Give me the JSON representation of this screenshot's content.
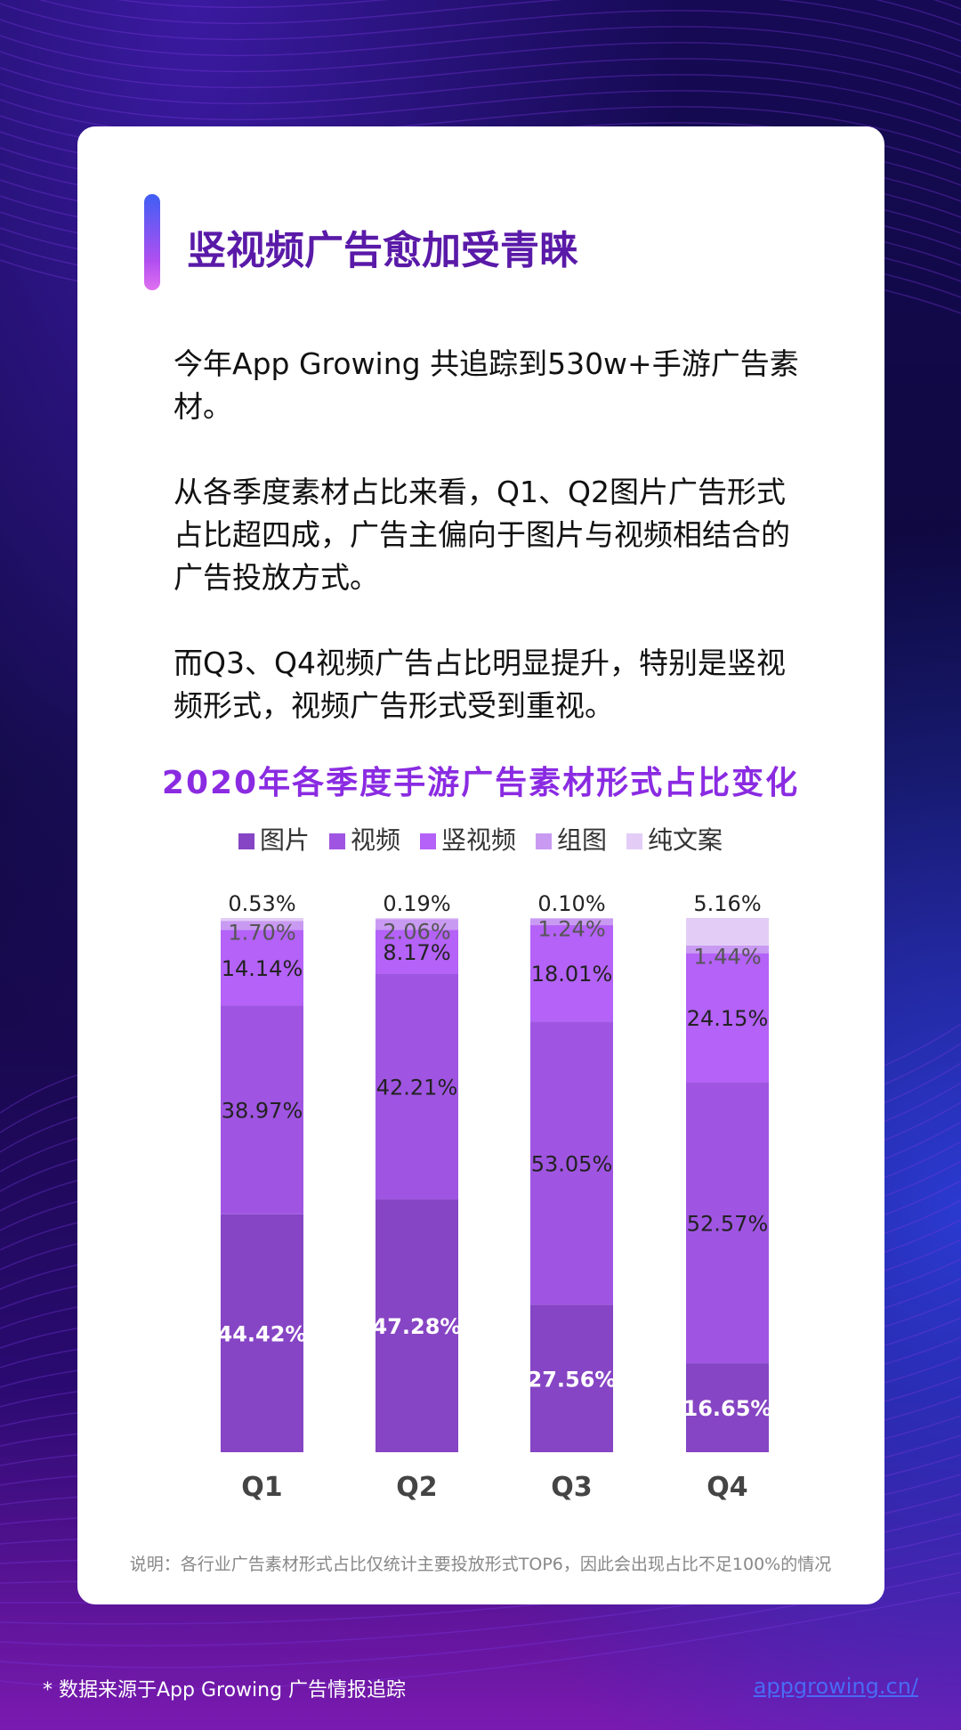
{
  "title": "竖视频广告愈加受青睐",
  "paragraphs": [
    "今年App Growing 共追踪到530w+手游广告素材。",
    "从各季度素材占比来看，Q1、Q2图片广告形式占比超四成，广告主偏向于图片与视频相结合的广告投放方式。",
    "而Q3、Q4视频广告占比明显提升，特别是竖视频形式，视频广告形式受到重视。"
  ],
  "chart_data": {
    "type": "bar",
    "stacked": true,
    "title": "2020年各季度手游广告素材形式占比变化",
    "categories": [
      "Q1",
      "Q2",
      "Q3",
      "Q4"
    ],
    "legend_position": "top",
    "series": [
      {
        "name": "图片",
        "values": [
          44.42,
          47.28,
          27.56,
          16.65
        ],
        "color": "#8645c4",
        "labels": [
          "44.42%",
          "47.28%",
          "27.56%",
          "16.65%"
        ]
      },
      {
        "name": "视频",
        "values": [
          38.97,
          42.21,
          53.05,
          52.57
        ],
        "color": "#a055e2",
        "labels": [
          "38.97%",
          "42.21%",
          "53.05%",
          "52.57%"
        ]
      },
      {
        "name": "竖视频",
        "values": [
          14.14,
          8.17,
          18.01,
          24.15
        ],
        "color": "#b462f7",
        "labels": [
          "14.14%",
          "8.17%",
          "18.01%",
          "24.15%"
        ]
      },
      {
        "name": "组图",
        "values": [
          1.7,
          2.06,
          1.24,
          1.44
        ],
        "color": "#c99af2",
        "labels": [
          "1.70%",
          "2.06%",
          "1.24%",
          "1.44%"
        ]
      },
      {
        "name": "纯文案",
        "values": [
          0.53,
          0.19,
          0.1,
          5.16
        ],
        "color": "#e3cdf7",
        "labels": [
          "0.53%",
          "0.19%",
          "0.10%",
          "5.16%"
        ]
      }
    ]
  },
  "note": "说明：各行业广告素材形式占比仅统计主要投放形式TOP6，因此会出现占比不足100%的情况",
  "footer": {
    "source": "* 数据来源于App Growing 广告情报追踪",
    "link": "appgrowing.cn/"
  }
}
